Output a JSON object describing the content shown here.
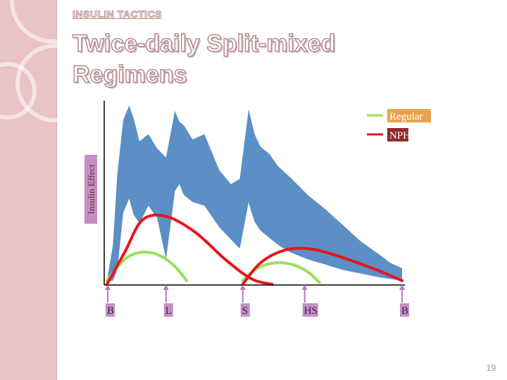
{
  "slide": {
    "kicker": "INSULIN TACTICS",
    "title": "Twice-daily Split-mixed Regimens",
    "page_number": "19"
  },
  "colors": {
    "side_panel": "#e9c3c6",
    "glucose_band": "#5b8fc5",
    "regular": "#99e05a",
    "nph": "#e8141b",
    "legend_regular_bg": "#e8a24a",
    "legend_nph_bg": "#8f2a2a",
    "meal_label_bg": "#c58fc6",
    "axis": "#000000"
  },
  "chart_data": {
    "type": "line",
    "ylabel": "Insulin Effect",
    "xlabel": "",
    "x_range": [
      0,
      1
    ],
    "y_range": [
      0,
      1
    ],
    "grid": false,
    "legend_position": "top-right",
    "meal_markers": [
      {
        "label": "B",
        "x": 0.0
      },
      {
        "label": "L",
        "x": 0.2
      },
      {
        "label": "S",
        "x": 0.46
      },
      {
        "label": "HS",
        "x": 0.67
      },
      {
        "label": "B",
        "x": 1.0
      }
    ],
    "series": [
      {
        "name": "Regular",
        "color_key": "regular",
        "x": [
          0.0,
          0.06,
          0.12,
          0.18,
          0.23,
          0.27
        ],
        "y": [
          0.02,
          0.14,
          0.18,
          0.16,
          0.1,
          0.02
        ]
      },
      {
        "name": "Regular",
        "color_key": "regular",
        "x": [
          0.46,
          0.51,
          0.57,
          0.63,
          0.68,
          0.72
        ],
        "y": [
          0.02,
          0.09,
          0.12,
          0.11,
          0.07,
          0.01
        ]
      },
      {
        "name": "NPH",
        "color_key": "nph",
        "x": [
          0.0,
          0.06,
          0.12,
          0.2,
          0.3,
          0.4,
          0.49,
          0.56
        ],
        "y": [
          0.0,
          0.18,
          0.36,
          0.38,
          0.29,
          0.14,
          0.03,
          0.0
        ]
      },
      {
        "name": "NPH",
        "color_key": "nph",
        "x": [
          0.46,
          0.52,
          0.6,
          0.68,
          0.76,
          0.85,
          0.93,
          1.0
        ],
        "y": [
          0.0,
          0.12,
          0.19,
          0.2,
          0.17,
          0.12,
          0.07,
          0.02
        ]
      }
    ],
    "glucose_band": {
      "x": [
        0.0,
        0.02,
        0.035,
        0.055,
        0.075,
        0.09,
        0.11,
        0.14,
        0.17,
        0.2,
        0.23,
        0.245,
        0.26,
        0.29,
        0.33,
        0.38,
        0.42,
        0.45,
        0.48,
        0.49,
        0.5,
        0.52,
        0.55,
        0.58,
        0.62,
        0.68,
        0.74,
        0.8,
        0.86,
        0.92,
        0.96,
        1.0
      ],
      "upper": [
        0.02,
        0.22,
        0.62,
        0.92,
        1.0,
        0.93,
        0.8,
        0.84,
        0.76,
        0.71,
        0.97,
        0.91,
        0.89,
        0.81,
        0.84,
        0.64,
        0.56,
        0.59,
        0.98,
        0.91,
        0.84,
        0.77,
        0.73,
        0.66,
        0.6,
        0.5,
        0.42,
        0.33,
        0.24,
        0.17,
        0.12,
        0.09
      ],
      "lower": [
        0.02,
        0.02,
        0.08,
        0.4,
        0.48,
        0.39,
        0.34,
        0.44,
        0.37,
        0.14,
        0.52,
        0.56,
        0.5,
        0.46,
        0.44,
        0.32,
        0.25,
        0.2,
        0.46,
        0.4,
        0.35,
        0.3,
        0.26,
        0.22,
        0.18,
        0.14,
        0.11,
        0.08,
        0.06,
        0.04,
        0.03,
        0.02
      ]
    }
  }
}
